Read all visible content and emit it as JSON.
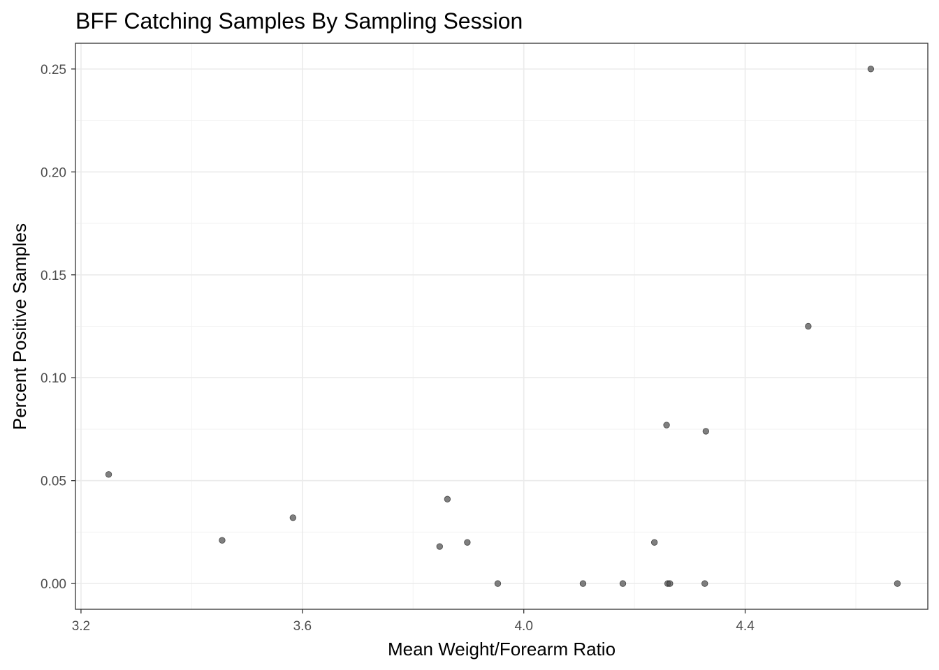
{
  "chart_data": {
    "type": "scatter",
    "title": "BFF Catching Samples By Sampling Session",
    "xlabel": "Mean Weight/Forearm Ratio",
    "ylabel": "Percent Positive Samples",
    "xlim": [
      3.19,
      4.73
    ],
    "ylim": [
      -0.0125,
      0.2625
    ],
    "xticks": [
      3.2,
      3.6,
      4.0,
      4.4
    ],
    "xtick_labels": [
      "3.2",
      "3.6",
      "4.0",
      "4.4"
    ],
    "yticks": [
      0.0,
      0.05,
      0.1,
      0.15,
      0.2,
      0.25
    ],
    "ytick_labels": [
      "0.00",
      "0.05",
      "0.10",
      "0.15",
      "0.20",
      "0.25"
    ],
    "grid": true,
    "point_color": "#4d4d4d",
    "points": [
      {
        "x": 3.25,
        "y": 0.053
      },
      {
        "x": 3.455,
        "y": 0.021
      },
      {
        "x": 3.583,
        "y": 0.032
      },
      {
        "x": 3.848,
        "y": 0.018
      },
      {
        "x": 3.862,
        "y": 0.041
      },
      {
        "x": 3.898,
        "y": 0.02
      },
      {
        "x": 3.953,
        "y": 0.0
      },
      {
        "x": 4.107,
        "y": 0.0
      },
      {
        "x": 4.179,
        "y": 0.0
      },
      {
        "x": 4.236,
        "y": 0.02
      },
      {
        "x": 4.258,
        "y": 0.077
      },
      {
        "x": 4.26,
        "y": 0.0
      },
      {
        "x": 4.264,
        "y": 0.0
      },
      {
        "x": 4.327,
        "y": 0.0
      },
      {
        "x": 4.329,
        "y": 0.074
      },
      {
        "x": 4.514,
        "y": 0.125
      },
      {
        "x": 4.627,
        "y": 0.25
      },
      {
        "x": 4.675,
        "y": 0.0
      }
    ]
  }
}
